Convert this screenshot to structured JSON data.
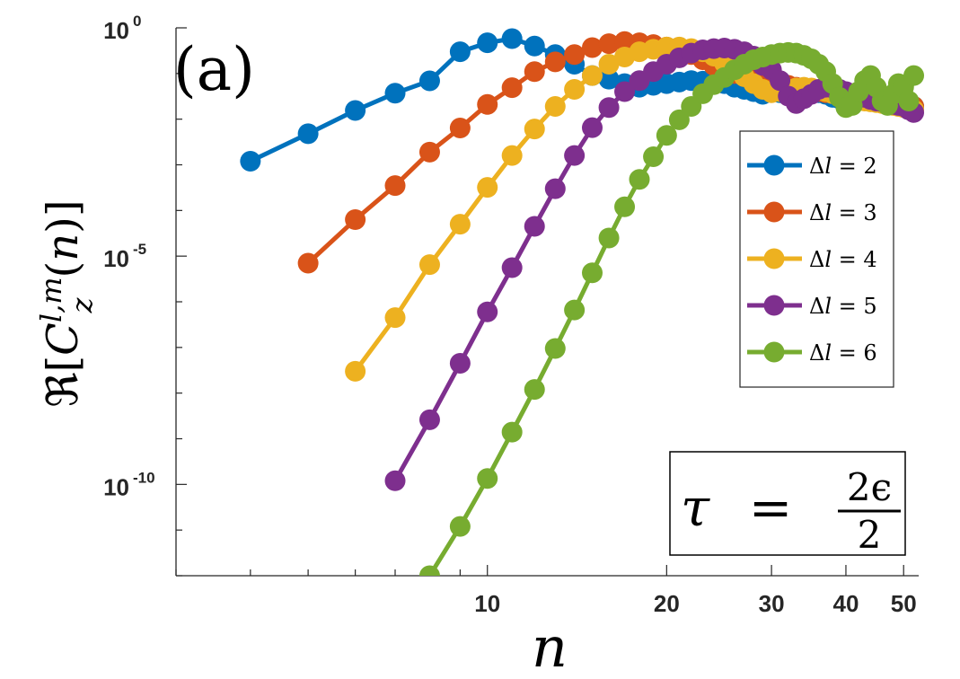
{
  "chart_data": {
    "type": "line",
    "panel_label": "(a)",
    "xlabel": "n",
    "ylabel": "ℜ[C_z^{l,m}(n)]",
    "xscale": "log",
    "yscale": "log",
    "xlim": [
      3.0,
      53.0
    ],
    "ylim": [
      1e-12,
      1
    ],
    "x_ticks": [
      10,
      20,
      30,
      40,
      50
    ],
    "x_tick_labels": [
      "10",
      "20",
      "30",
      "40",
      "50"
    ],
    "y_ticks": [
      1e-10,
      1e-05,
      1
    ],
    "y_tick_labels": [
      {
        "base": "10",
        "exp": "-10"
      },
      {
        "base": "10",
        "exp": "-5"
      },
      {
        "base": "10",
        "exp": "0"
      }
    ],
    "legend_position": "right",
    "annotation": {
      "lhs": "τ",
      "eq": "=",
      "num": "2ϵ",
      "den": "2"
    },
    "series": [
      {
        "name": "Δl = 2",
        "prefix": "Δ",
        "var": "l",
        "rhs": " = 2",
        "color": "#0072BD",
        "x": [
          4,
          5,
          6,
          7,
          8,
          9,
          10,
          11,
          12,
          13,
          14,
          15,
          16,
          17,
          18,
          19,
          20,
          21,
          22,
          23,
          24,
          25,
          26,
          27,
          28,
          29,
          30,
          31,
          32,
          33,
          34,
          35,
          36,
          37,
          38,
          39,
          40,
          41,
          42,
          43,
          44,
          45,
          46,
          47,
          48,
          49,
          50,
          51,
          52
        ],
        "y": [
          0.0012,
          0.0048,
          0.0155,
          0.037,
          0.069,
          0.3,
          0.47,
          0.58,
          0.4,
          0.26,
          0.16,
          0.09,
          0.075,
          0.06,
          0.05,
          0.055,
          0.06,
          0.065,
          0.07,
          0.068,
          0.063,
          0.06,
          0.05,
          0.045,
          0.04,
          0.035,
          0.04,
          0.038,
          0.036,
          0.04,
          0.045,
          0.042,
          0.038,
          0.035,
          0.03,
          0.028,
          0.025,
          0.026,
          0.028,
          0.027,
          0.025,
          0.024,
          0.023,
          0.022,
          0.022,
          0.021,
          0.02,
          0.02,
          0.019
        ]
      },
      {
        "name": "Δl = 3",
        "prefix": "Δ",
        "var": "l",
        "rhs": " = 3",
        "color": "#D95319",
        "x": [
          5,
          6,
          7,
          8,
          9,
          10,
          11,
          12,
          13,
          14,
          15,
          16,
          17,
          18,
          19,
          20,
          21,
          22,
          23,
          24,
          25,
          26,
          27,
          28,
          29,
          30,
          31,
          32,
          33,
          34,
          35,
          36,
          37,
          38,
          39,
          40,
          41,
          42,
          43,
          44,
          45,
          46,
          47,
          48,
          49,
          50,
          51,
          52
        ],
        "y": [
          7e-06,
          6.3e-05,
          0.00035,
          0.0019,
          0.0064,
          0.021,
          0.049,
          0.11,
          0.18,
          0.26,
          0.37,
          0.45,
          0.5,
          0.47,
          0.43,
          0.38,
          0.32,
          0.26,
          0.2,
          0.15,
          0.12,
          0.1,
          0.085,
          0.075,
          0.065,
          0.06,
          0.058,
          0.055,
          0.05,
          0.045,
          0.042,
          0.04,
          0.038,
          0.04,
          0.038,
          0.035,
          0.033,
          0.03,
          0.028,
          0.03,
          0.028,
          0.025,
          0.024,
          0.022,
          0.021,
          0.02,
          0.02,
          0.019
        ]
      },
      {
        "name": "Δl = 4",
        "prefix": "Δ",
        "var": "l",
        "rhs": " = 4",
        "color": "#EDB120",
        "x": [
          6,
          7,
          8,
          9,
          10,
          11,
          12,
          13,
          14,
          15,
          16,
          17,
          18,
          19,
          20,
          21,
          22,
          23,
          24,
          25,
          26,
          27,
          28,
          29,
          30,
          31,
          32,
          33,
          34,
          35,
          36,
          37,
          38,
          39,
          40,
          41,
          42,
          43,
          44,
          45,
          46,
          47,
          48,
          49,
          50,
          51,
          52
        ],
        "y": [
          3e-08,
          4.5e-07,
          6.5e-06,
          5e-05,
          0.00032,
          0.0016,
          0.0061,
          0.019,
          0.045,
          0.09,
          0.16,
          0.23,
          0.3,
          0.34,
          0.38,
          0.38,
          0.35,
          0.3,
          0.24,
          0.17,
          0.12,
          0.085,
          0.06,
          0.045,
          0.038,
          0.04,
          0.045,
          0.048,
          0.05,
          0.048,
          0.044,
          0.04,
          0.036,
          0.033,
          0.03,
          0.028,
          0.026,
          0.025,
          0.024,
          0.023,
          0.022,
          0.021,
          0.02,
          0.019,
          0.018,
          0.017,
          0.016
        ]
      },
      {
        "name": "Δl = 5",
        "prefix": "Δ",
        "var": "l",
        "rhs": " = 5",
        "color": "#7E2F8E",
        "x": [
          7,
          8,
          9,
          10,
          11,
          12,
          13,
          14,
          15,
          16,
          17,
          18,
          19,
          20,
          21,
          22,
          23,
          24,
          25,
          26,
          27,
          28,
          29,
          30,
          31,
          32,
          33,
          34,
          35,
          36,
          37,
          38,
          39,
          40,
          41,
          42,
          43,
          44,
          45,
          46,
          47,
          48,
          49,
          50,
          51,
          52
        ],
        "y": [
          1.2e-10,
          2.6e-09,
          4.5e-08,
          6e-07,
          5.6e-06,
          4.5e-05,
          0.0003,
          0.0016,
          0.0065,
          0.018,
          0.04,
          0.07,
          0.11,
          0.16,
          0.22,
          0.28,
          0.33,
          0.35,
          0.36,
          0.34,
          0.3,
          0.24,
          0.15,
          0.12,
          0.07,
          0.032,
          0.022,
          0.028,
          0.035,
          0.045,
          0.05,
          0.048,
          0.045,
          0.04,
          0.036,
          0.033,
          0.03,
          0.027,
          0.025,
          0.024,
          0.022,
          0.021,
          0.02,
          0.019,
          0.016,
          0.014
        ]
      },
      {
        "name": "Δl = 6",
        "prefix": "Δ",
        "var": "l",
        "rhs": " = 6",
        "color": "#77AC30",
        "x": [
          8,
          9,
          10,
          11,
          12,
          13,
          14,
          15,
          16,
          17,
          18,
          19,
          20,
          21,
          22,
          23,
          24,
          25,
          26,
          27,
          28,
          29,
          30,
          31,
          32,
          33,
          34,
          35,
          36,
          37,
          38,
          39,
          40,
          41,
          42,
          43,
          44,
          45,
          46,
          47,
          48,
          49,
          50,
          51,
          52
        ],
        "y": [
          1e-12,
          1.2e-11,
          1.35e-10,
          1.4e-09,
          1.2e-08,
          9.5e-08,
          6.6e-07,
          4.3e-06,
          2.5e-05,
          0.00012,
          0.00048,
          0.0015,
          0.0044,
          0.0097,
          0.019,
          0.036,
          0.057,
          0.082,
          0.12,
          0.16,
          0.2,
          0.23,
          0.26,
          0.28,
          0.29,
          0.28,
          0.25,
          0.21,
          0.16,
          0.11,
          0.06,
          0.03,
          0.018,
          0.02,
          0.04,
          0.07,
          0.09,
          0.05,
          0.025,
          0.02,
          0.035,
          0.06,
          0.05,
          0.025,
          0.09
        ]
      }
    ]
  }
}
